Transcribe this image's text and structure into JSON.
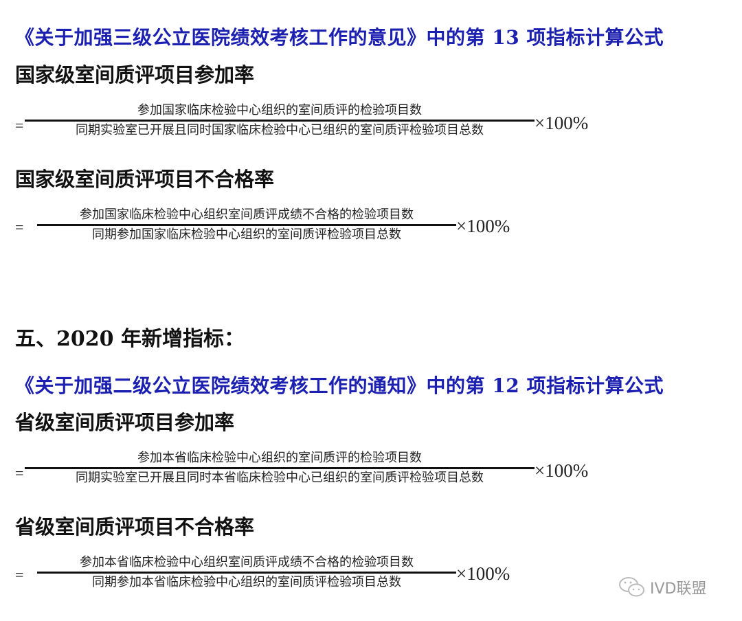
{
  "title1": "《关于加强三级公立医院绩效考核工作的意见》中的第 13 项指标计算公式",
  "heading1": "国家级室间质评项目参加率",
  "formula1": {
    "eq": "=",
    "numerator": "参加国家临床检验中心组织的室间质评的检验项目数",
    "denominator": "同期实验室已开展且同时国家临床检验中心已组织的室间质评检验项目总数",
    "times": "×100%"
  },
  "heading2": "国家级室间质评项目不合格率",
  "formula2": {
    "eq": "=",
    "numerator": "参加国家临床检验中心组织室间质评成绩不合格的检验项目数",
    "denominator": "同期参加国家临床检验中心组织的室间质评检验项目总数",
    "times": "×100%"
  },
  "section": "五、2020 年新增指标：",
  "title2": "《关于加强二级公立医院绩效考核工作的通知》中的第 12 项指标计算公式",
  "heading3": "省级室间质评项目参加率",
  "formula3": {
    "eq": "=",
    "numerator": "参加本省临床检验中心组织的室间质评的检验项目数",
    "denominator": "同期实验室已开展且同时本省临床检验中心已组织的室间质评检验项目总数",
    "times": "×100%"
  },
  "heading4": "省级室间质评项目不合格率",
  "formula4": {
    "eq": "=",
    "numerator": "参加本省临床检验中心组织室间质评成绩不合格的检验项目数",
    "denominator": "同期参加本省临床检验中心组织的室间质评检验项目总数",
    "times": "×100%"
  },
  "watermark": {
    "text": "IVD联盟",
    "icon": "wechat-icon"
  },
  "colors": {
    "title": "#1c20b0"
  }
}
